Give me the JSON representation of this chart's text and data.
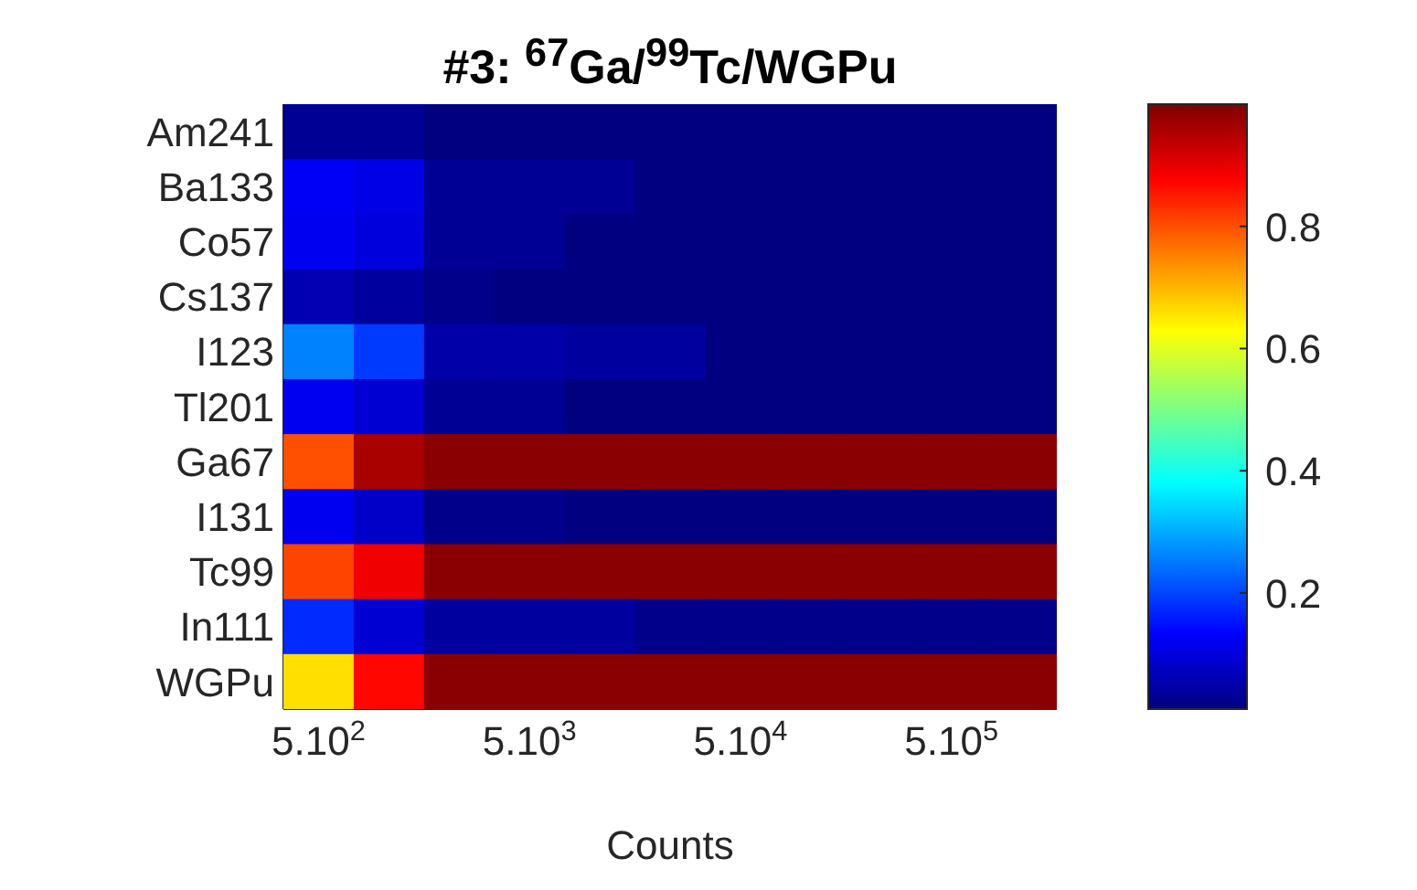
{
  "chart_data": {
    "type": "heatmap",
    "title": "#3: $^{67}$Ga/$^{99}$Tc/WGPu",
    "xlabel": "Counts",
    "categories": [
      "5.10$^{2}$",
      null,
      null,
      "5.10$^{3}$",
      null,
      null,
      "5.10$^{4}$",
      null,
      null,
      "5.10$^{5}$",
      null
    ],
    "y_categories": [
      "Am241",
      "Ba133",
      "Co57",
      "Cs137",
      "I123",
      "Tl201",
      "Ga67",
      "I131",
      "Tc99",
      "In111",
      "WGPu"
    ],
    "cells": [
      [
        0.03,
        0.03,
        0.01,
        0.01,
        0.01,
        0.01,
        0.01,
        0.01,
        0.01,
        0.01,
        0.01
      ],
      [
        0.125,
        0.11,
        0.03,
        0.03,
        0.03,
        0.01,
        0.01,
        0.01,
        0.01,
        0.01,
        0.01
      ],
      [
        0.12,
        0.1,
        0.03,
        0.03,
        0.01,
        0.01,
        0.01,
        0.01,
        0.01,
        0.01,
        0.01
      ],
      [
        0.06,
        0.04,
        0.02,
        0.01,
        0.01,
        0.01,
        0.01,
        0.01,
        0.01,
        0.01,
        0.01
      ],
      [
        0.26,
        0.19,
        0.05,
        0.05,
        0.04,
        0.04,
        0.01,
        0.01,
        0.01,
        0.01,
        0.01
      ],
      [
        0.12,
        0.09,
        0.03,
        0.03,
        0.01,
        0.01,
        0.01,
        0.01,
        0.01,
        0.01,
        0.01
      ],
      [
        0.8,
        0.96,
        0.99,
        0.99,
        0.99,
        0.99,
        0.99,
        0.99,
        0.99,
        0.99,
        0.99
      ],
      [
        0.12,
        0.08,
        0.02,
        0.02,
        0.01,
        0.01,
        0.01,
        0.01,
        0.01,
        0.01,
        0.01
      ],
      [
        0.81,
        0.89,
        0.99,
        0.99,
        0.99,
        0.99,
        0.99,
        0.99,
        0.99,
        0.99,
        0.99
      ],
      [
        0.175,
        0.09,
        0.04,
        0.04,
        0.04,
        0.02,
        0.02,
        0.02,
        0.02,
        0.02,
        0.02
      ],
      [
        0.66,
        0.87,
        0.99,
        0.99,
        0.99,
        0.99,
        0.99,
        0.99,
        0.99,
        0.99,
        0.99
      ]
    ],
    "clim": [
      0.01,
      1
    ],
    "cticks": [
      0.2,
      0.4,
      0.6,
      0.8
    ]
  }
}
